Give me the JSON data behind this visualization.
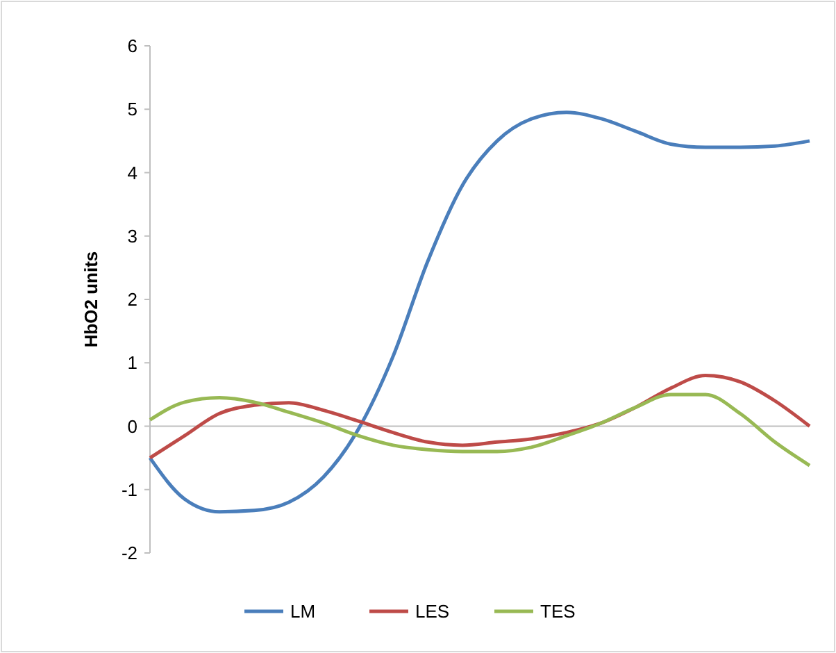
{
  "chart_data": {
    "type": "line",
    "ylabel": "HbO2 units",
    "categories": [
      null,
      null,
      null,
      null,
      null,
      null,
      null,
      null,
      null,
      null,
      null,
      null,
      null,
      null,
      null,
      null,
      null,
      null,
      null,
      null
    ],
    "series": [
      {
        "name": "LM",
        "color": "#4a7ebb",
        "values": [
          -0.5,
          -1.15,
          -1.35,
          -1.33,
          -1.2,
          -0.8,
          -0.05,
          1.1,
          2.6,
          3.8,
          4.5,
          4.85,
          4.95,
          4.85,
          4.65,
          4.45,
          4.4,
          4.4,
          4.42,
          4.5
        ]
      },
      {
        "name": "LES",
        "color": "#be4b48",
        "values": [
          -0.5,
          -0.15,
          0.2,
          0.33,
          0.37,
          0.25,
          0.08,
          -0.1,
          -0.25,
          -0.3,
          -0.25,
          -0.2,
          -0.1,
          0.05,
          0.3,
          0.6,
          0.8,
          0.7,
          0.4,
          0.0
        ]
      },
      {
        "name": "TES",
        "color": "#98b954",
        "values": [
          0.1,
          0.38,
          0.45,
          0.38,
          0.22,
          0.05,
          -0.15,
          -0.3,
          -0.37,
          -0.4,
          -0.4,
          -0.33,
          -0.15,
          0.05,
          0.3,
          0.5,
          0.5,
          0.2,
          -0.25,
          -0.62
        ]
      }
    ],
    "ylim": [
      -2,
      6
    ],
    "yticks": [
      -2,
      -1,
      0,
      1,
      2,
      3,
      4,
      5,
      6
    ],
    "grid": false,
    "ref_lines": [
      {
        "axis": "y",
        "value": 0,
        "color": "#bfbfbf"
      }
    ],
    "legend": "bottom",
    "marker": "none",
    "line_style": "solid"
  }
}
